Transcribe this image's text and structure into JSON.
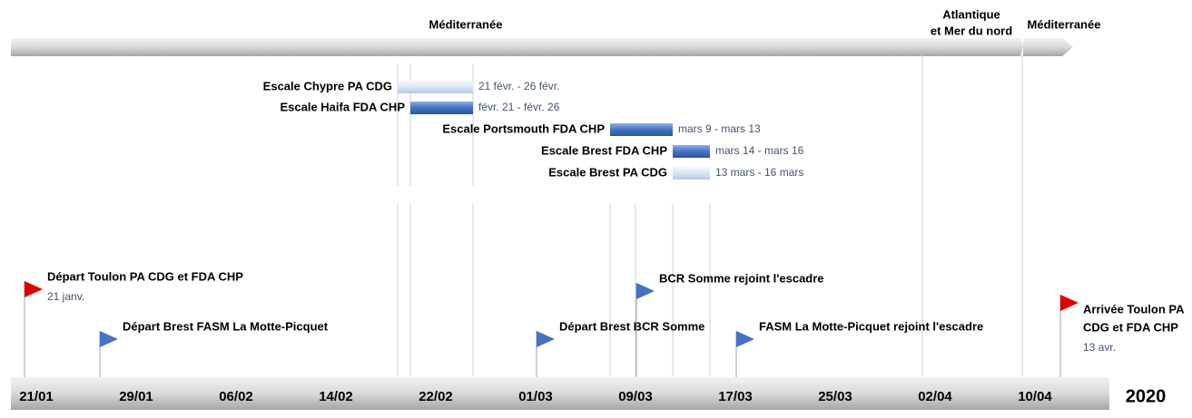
{
  "phases": [
    {
      "lines": [
        "Méditerranée"
      ]
    },
    {
      "lines": [
        "Atlantique",
        "et Mer du nord"
      ]
    },
    {
      "lines": [
        "Méditerranée"
      ]
    }
  ],
  "tasks": [
    {
      "label": "Escale Chypre PA CDG",
      "dates": "21 févr. - 26 févr."
    },
    {
      "label": "Escale Haifa FDA CHP",
      "dates": "févr. 21 - févr. 26"
    },
    {
      "label": "Escale Portsmouth FDA CHP",
      "dates": "mars 9 - mars 13"
    },
    {
      "label": "Escale Brest FDA CHP",
      "dates": "mars 14 - mars 16"
    },
    {
      "label": "Escale Brest PA CDG",
      "dates": "13 mars - 16 mars"
    }
  ],
  "milestones": [
    {
      "lines": [
        "Départ Toulon PA CDG et FDA CHP"
      ],
      "date": "21 janv."
    },
    {
      "lines": [
        "Départ Brest FASM La Motte-Picquet"
      ]
    },
    {
      "lines": [
        "Départ Brest BCR Somme"
      ]
    },
    {
      "lines": [
        "BCR Somme rejoint l'escadre"
      ]
    },
    {
      "lines": [
        "FASM La Motte-Picquet rejoint l'escadre"
      ]
    },
    {
      "lines": [
        "Arrivée Toulon PA",
        "CDG et FDA CHP"
      ],
      "date": "13 avr."
    }
  ],
  "axis": {
    "dates": [
      "21/01",
      "29/01",
      "06/02",
      "14/02",
      "22/02",
      "01/03",
      "09/03",
      "17/03",
      "25/03",
      "02/04",
      "10/04"
    ],
    "year": "2020"
  }
}
